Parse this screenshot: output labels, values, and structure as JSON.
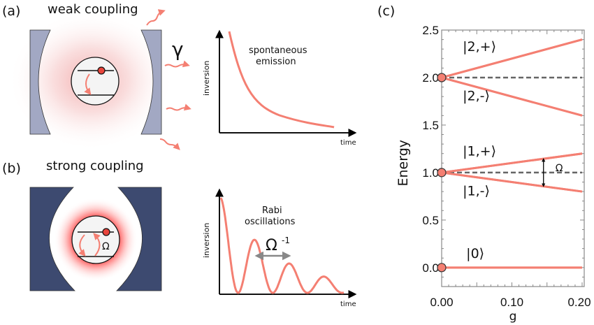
{
  "panels": {
    "a": {
      "label": "(a)",
      "title": "weak coupling",
      "decay_symbol": "γ",
      "mirror_color": "#a2a8c3",
      "plot": {
        "ylabel": "inversion",
        "xlabel": "time",
        "annotation_line1": "spontaneous",
        "annotation_line2": "emission"
      }
    },
    "b": {
      "label": "(b)",
      "title": "strong coupling",
      "coupling_symbol": "Ω",
      "mirror_color": "#3d4a70",
      "plot": {
        "ylabel": "inversion",
        "xlabel": "time",
        "annotation_line1": "Rabi",
        "annotation_line2": "oscillations",
        "period_symbol": "Ω",
        "period_exponent": "-1"
      }
    },
    "c": {
      "label": "(c)",
      "splitting_symbol": "Ω"
    }
  },
  "colors": {
    "curve": "#f47f72",
    "atom_dot": "#e8453c",
    "dashed": "#666666",
    "frame": "#888888"
  },
  "chart_data": {
    "type": "line",
    "title": "",
    "xlabel": "g",
    "ylabel": "Energy",
    "xlim": [
      0.0,
      0.2
    ],
    "ylim": [
      -0.2,
      2.5
    ],
    "xticks": [
      0.0,
      0.1,
      0.2
    ],
    "xtick_labels": [
      "0.00",
      "0.10",
      "0.20"
    ],
    "yticks": [
      0.0,
      0.5,
      1.0,
      1.5,
      2.0,
      2.5
    ],
    "ytick_labels": [
      "0.0",
      "0.5",
      "1.0",
      "1.5",
      "2.0",
      "2.5"
    ],
    "grid": false,
    "series": [
      {
        "name": "|2,+⟩",
        "label": "|2,+⟩",
        "x": [
          0.0,
          0.2
        ],
        "y": [
          2.0,
          2.4
        ],
        "style": "solid"
      },
      {
        "name": "|2,-⟩",
        "label": "|2,-⟩",
        "x": [
          0.0,
          0.2
        ],
        "y": [
          2.0,
          1.6
        ],
        "style": "solid"
      },
      {
        "name": "|1,+⟩",
        "label": "|1,+⟩",
        "x": [
          0.0,
          0.2
        ],
        "y": [
          1.0,
          1.2
        ],
        "style": "solid"
      },
      {
        "name": "|1,-⟩",
        "label": "|1,-⟩",
        "x": [
          0.0,
          0.2
        ],
        "y": [
          1.0,
          0.8
        ],
        "style": "solid"
      },
      {
        "name": "|0⟩",
        "label": "|0⟩",
        "x": [
          0.0,
          0.2
        ],
        "y": [
          0.0,
          0.0
        ],
        "style": "solid"
      },
      {
        "name": "bare-2",
        "x": [
          0.0,
          0.2
        ],
        "y": [
          2.0,
          2.0
        ],
        "style": "dashed"
      },
      {
        "name": "bare-1",
        "x": [
          0.0,
          0.2
        ],
        "y": [
          1.0,
          1.0
        ],
        "style": "dashed"
      }
    ],
    "markers": [
      {
        "x": 0.0,
        "y": 2.0
      },
      {
        "x": 0.0,
        "y": 1.0
      },
      {
        "x": 0.0,
        "y": 0.0
      }
    ],
    "annotations": [
      {
        "text": "Ω",
        "type": "double-arrow",
        "x": 0.145,
        "y_from": 0.855,
        "y_to": 1.145
      }
    ]
  }
}
